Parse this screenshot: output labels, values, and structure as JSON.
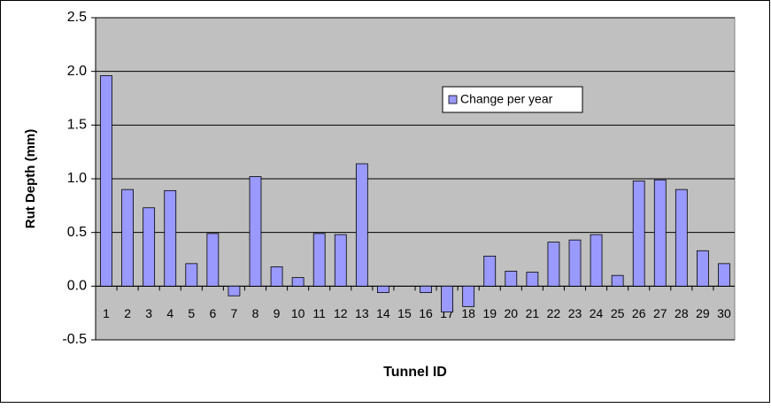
{
  "chart_data": {
    "type": "bar",
    "x_label": "Tunnel ID",
    "y_label": "Rut Depth (mm)",
    "categories": [
      "1",
      "2",
      "3",
      "4",
      "5",
      "6",
      "7",
      "8",
      "9",
      "10",
      "11",
      "12",
      "13",
      "14",
      "15",
      "16",
      "17",
      "18",
      "19",
      "20",
      "21",
      "22",
      "23",
      "24",
      "25",
      "26",
      "27",
      "28",
      "29",
      "30"
    ],
    "series": [
      {
        "name": "Change per year",
        "color": "#9999ff",
        "values": [
          1.96,
          0.9,
          0.73,
          0.89,
          0.21,
          0.49,
          -0.09,
          1.02,
          0.18,
          0.08,
          0.49,
          0.48,
          1.14,
          -0.06,
          0,
          -0.06,
          -0.24,
          -0.19,
          0.28,
          0.14,
          0.13,
          0.41,
          0.43,
          0.48,
          0.1,
          0.98,
          0.99,
          0.9,
          0.33,
          0.21
        ]
      }
    ],
    "ylim": [
      -0.5,
      2.5
    ],
    "yticks": [
      -0.5,
      {
        "value": 0,
        "label": "0.0"
      },
      0.5,
      {
        "value": 1,
        "label": "1.0"
      },
      1.5,
      {
        "value": 2,
        "label": "2.0"
      },
      2.5
    ],
    "grid": true,
    "legend": "upper-right"
  }
}
